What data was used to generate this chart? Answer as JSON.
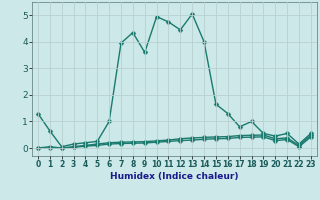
{
  "xlabel": "Humidex (Indice chaleur)",
  "x_values": [
    0,
    1,
    2,
    3,
    4,
    5,
    6,
    7,
    8,
    9,
    10,
    11,
    12,
    13,
    14,
    15,
    16,
    17,
    18,
    19,
    20,
    21,
    22,
    23
  ],
  "line1_y": [
    1.3,
    0.65,
    0.05,
    0.15,
    0.2,
    0.25,
    1.0,
    3.95,
    4.35,
    3.6,
    4.95,
    4.75,
    4.45,
    5.05,
    4.0,
    1.65,
    1.3,
    0.8,
    1.0,
    0.55,
    0.45,
    0.55,
    0.15,
    0.55
  ],
  "line2_y": [
    0.0,
    0.0,
    0.0,
    0.05,
    0.1,
    0.15,
    0.2,
    0.22,
    0.23,
    0.24,
    0.27,
    0.3,
    0.35,
    0.38,
    0.4,
    0.42,
    0.43,
    0.47,
    0.48,
    0.49,
    0.35,
    0.38,
    0.1,
    0.48
  ],
  "line3_y": [
    0.0,
    0.05,
    0.0,
    0.03,
    0.07,
    0.1,
    0.15,
    0.17,
    0.18,
    0.19,
    0.22,
    0.25,
    0.28,
    0.3,
    0.33,
    0.35,
    0.36,
    0.4,
    0.41,
    0.42,
    0.28,
    0.32,
    0.05,
    0.42
  ],
  "line_color": "#1a7a6e",
  "background_color": "#cce8e8",
  "grid_color": "#b8d0d0",
  "plot_bg": "#cce8e8",
  "ylim": [
    -0.3,
    5.5
  ],
  "yticks": [
    0,
    1,
    2,
    3,
    4,
    5
  ],
  "xlim": [
    -0.5,
    23.5
  ],
  "marker": "D",
  "markersize": 2.5,
  "linewidth": 1.0,
  "tick_color": "#1a5a5a",
  "xlabel_color": "#1a1a8c"
}
